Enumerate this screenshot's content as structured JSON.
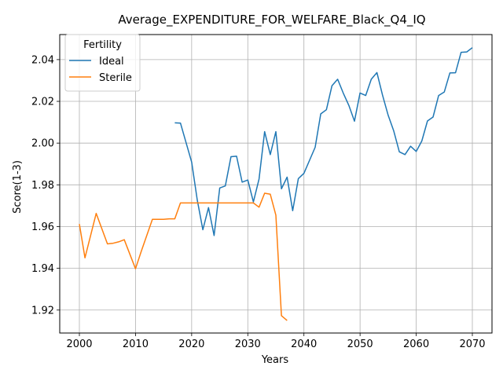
{
  "chart_data": {
    "type": "line",
    "title": "Average_EXPENDITURE_FOR_WELFARE_Black_Q4_IQ",
    "xlabel": "Years",
    "ylabel": "Score(1-3)",
    "xlim": [
      1996.5,
      2073.5
    ],
    "ylim": [
      1.909,
      2.052
    ],
    "xticks": [
      2000,
      2010,
      2020,
      2030,
      2040,
      2050,
      2060,
      2070
    ],
    "yticks": [
      1.92,
      1.94,
      1.96,
      1.98,
      2.0,
      2.02,
      2.04
    ],
    "ytick_labels": [
      "1.92",
      "1.94",
      "1.96",
      "1.98",
      "2.00",
      "2.02",
      "2.04"
    ],
    "grid": true,
    "legend": {
      "title": "Fertility",
      "placement": "top-left"
    },
    "series": [
      {
        "name": "Ideal",
        "color": "#1f77b4",
        "x": [
          2017,
          2018,
          2019,
          2020,
          2021,
          2022,
          2023,
          2024,
          2025,
          2026,
          2027,
          2028,
          2029,
          2030,
          2031,
          2032,
          2033,
          2034,
          2035,
          2036,
          2037,
          2038,
          2039,
          2040,
          2041,
          2042,
          2043,
          2044,
          2045,
          2046,
          2047,
          2048,
          2049,
          2050,
          2051,
          2052,
          2053,
          2054,
          2055,
          2056,
          2057,
          2058,
          2059,
          2060,
          2061,
          2062,
          2063,
          2064,
          2065,
          2066,
          2067,
          2068,
          2069,
          2070
        ],
        "y": [
          2.0097,
          2.0096,
          2.0003,
          1.9908,
          1.9727,
          1.9585,
          1.9691,
          1.9557,
          1.9785,
          1.9795,
          1.9935,
          1.9937,
          1.9813,
          1.9823,
          1.9718,
          1.9828,
          2.0055,
          1.9945,
          2.0055,
          1.9781,
          1.9837,
          1.9676,
          1.983,
          1.9855,
          1.9918,
          1.998,
          2.014,
          2.016,
          2.0275,
          2.0306,
          2.024,
          2.018,
          2.0105,
          2.024,
          2.0228,
          2.0306,
          2.0338,
          2.023,
          2.0133,
          2.0058,
          1.9958,
          1.9945,
          1.9985,
          1.996,
          2.001,
          2.0106,
          2.0125,
          2.0228,
          2.0245,
          2.0336,
          2.0337,
          2.0435,
          2.0437,
          2.0457
        ]
      },
      {
        "name": "Sterile",
        "color": "#ff7f0e",
        "x": [
          2000,
          2001,
          2003,
          2005,
          2006,
          2007,
          2008,
          2010,
          2011,
          2013,
          2015,
          2016,
          2017,
          2018,
          2019,
          2020,
          2030,
          2031,
          2032,
          2033,
          2034,
          2035,
          2036,
          2037
        ],
        "y": [
          1.9612,
          1.945,
          1.9663,
          1.9517,
          1.952,
          1.9527,
          1.9537,
          1.9398,
          1.948,
          1.9635,
          1.9635,
          1.9637,
          1.9637,
          1.9713,
          1.9713,
          1.9713,
          1.9713,
          1.9713,
          1.9693,
          1.976,
          1.9755,
          1.9655,
          1.9173,
          1.915
        ]
      }
    ]
  }
}
